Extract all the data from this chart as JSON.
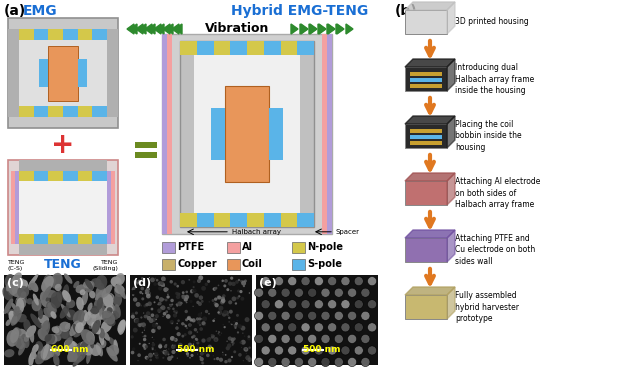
{
  "panel_a_label": "(a)",
  "panel_b_label": "(b)",
  "panel_c_label": "(c)",
  "panel_d_label": "(d)",
  "panel_e_label": "(e)",
  "emg_label": "EMG",
  "hybrid_label": "Hybrid EMG-TENG",
  "teng_label": "TENG",
  "teng_cs_label": "TENG\n(C-S)",
  "teng_sliding_label": "TENG\n(Sliding)",
  "vibration_label": "Vibration",
  "halbach_label": "Halbach array",
  "spacer_label": "Spacer",
  "legend_items": [
    "PTFE",
    "Al",
    "N-pole",
    "Copper",
    "Coil",
    "S-pole"
  ],
  "legend_colors": [
    "#b19cd9",
    "#f4a0a0",
    "#d4c84a",
    "#c8b06a",
    "#e8965a",
    "#5ab4e8"
  ],
  "assembly_steps": [
    "3D printed housing",
    "Introducing dual\nHalbach array frame\ninside the housing",
    "Placing the coil\nbobbin inside the\nhousing",
    "Attaching Al electrode\non both sides of\nHalbach array frame",
    "Attaching PTFE and\nCu electrode on both\nsides wall",
    "Fully assembled\nhybrid harvester\nprototype"
  ],
  "scale_600nm": "600 nm",
  "scale_500nm_d": "500 nm",
  "scale_500nm_e": "500 nm",
  "bg_color": "#ffffff",
  "blue_label": "#1a6fd4",
  "arrow_orange": "#e07820",
  "green_chevron": "#2d8a2d",
  "orange_coil": "#e8965a",
  "blue_spoke": "#5ab4e8",
  "yellow_mag": "#d4c84a",
  "purple_ptfe": "#b19cd9",
  "pink_al": "#f4a0a0",
  "copper_color": "#c8b06a",
  "gray_outer": "#c8c8c8",
  "gray_inner_bg": "#e8e8e8",
  "gray_frame2": "#b8b8b8"
}
